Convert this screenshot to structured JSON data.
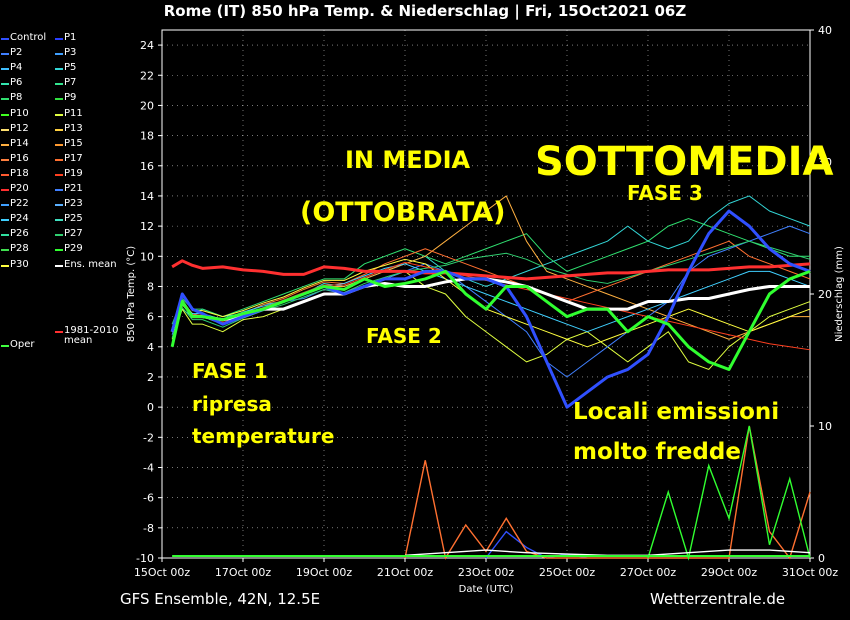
{
  "title": "Rome  (IT)  850 hPa Temp. & Niederschlag | Fri, 15Oct2021 06Z",
  "footer_left": "GFS Ensemble, 42N, 12.5E",
  "footer_right": "Wetterzentrale.de",
  "legend": [
    {
      "label": "Control",
      "color": "#3050ff"
    },
    {
      "label": "P1",
      "color": "#2a40ff"
    },
    {
      "label": "P2",
      "color": "#3f7fff"
    },
    {
      "label": "P3",
      "color": "#3f9fff"
    },
    {
      "label": "P4",
      "color": "#40bfff"
    },
    {
      "label": "P5",
      "color": "#33d6d6"
    },
    {
      "label": "P6",
      "color": "#33e6b0"
    },
    {
      "label": "P7",
      "color": "#33e690"
    },
    {
      "label": "P8",
      "color": "#30e070"
    },
    {
      "label": "P9",
      "color": "#30e040"
    },
    {
      "label": "P10",
      "color": "#40ff20"
    },
    {
      "label": "P11",
      "color": "#e0ff40"
    },
    {
      "label": "P12",
      "color": "#ffe070"
    },
    {
      "label": "P13",
      "color": "#ffd040"
    },
    {
      "label": "P14",
      "color": "#ffb040"
    },
    {
      "label": "P15",
      "color": "#ff9a30"
    },
    {
      "label": "P16",
      "color": "#ff8040"
    },
    {
      "label": "P17",
      "color": "#ff7030"
    },
    {
      "label": "P18",
      "color": "#ff5a30"
    },
    {
      "label": "P19",
      "color": "#ff4020"
    },
    {
      "label": "P20",
      "color": "#ff3030"
    },
    {
      "label": "P21",
      "color": "#4080ff"
    },
    {
      "label": "P22",
      "color": "#3fa0ff"
    },
    {
      "label": "P23",
      "color": "#5ab0ff"
    },
    {
      "label": "P24",
      "color": "#40d0ff"
    },
    {
      "label": "P25",
      "color": "#40e0c0"
    },
    {
      "label": "P26",
      "color": "#30e0a0"
    },
    {
      "label": "P27",
      "color": "#30d070"
    },
    {
      "label": "P28",
      "color": "#40e050"
    },
    {
      "label": "P29",
      "color": "#30ff30"
    },
    {
      "label": "P30",
      "color": "#ffff40"
    },
    {
      "label": "Ens. mean",
      "color": "#ffffff"
    },
    {
      "label": "Oper",
      "color": "#40ff40"
    },
    {
      "label": "1981-2010\nmean",
      "color": "#ff3030"
    }
  ],
  "annotations": {
    "in_media": "IN MEDIA",
    "ottobrata": "(OTTOBRATA)",
    "sottomedia": "SOTTOMEDIA",
    "fase3": "FASE 3",
    "fase2": "FASE 2",
    "fase1": "FASE 1",
    "ripresa": "ripresa",
    "temperature": "temperature",
    "locali": "Locali emissioni",
    "molto": "molto fredde"
  },
  "chart_data": {
    "type": "line",
    "title": "Rome  (IT)  850 hPa Temp. & Niederschlag | Fri, 15Oct2021 06Z",
    "xlabel": "Date (UTC)",
    "ylabel": "850 hPa Temp. (°C)",
    "y2label": "Niederschlag (mm)",
    "xlim": [
      0,
      16
    ],
    "ylim": [
      -10,
      25
    ],
    "y2lim": [
      0,
      40
    ],
    "x_ticks": [
      0,
      2,
      4,
      6,
      8,
      10,
      12,
      14,
      16
    ],
    "x_tick_labels": [
      "15Oct 00z",
      "17Oct 00z",
      "19Oct 00z",
      "21Oct 00z",
      "23Oct 00z",
      "25Oct 00z",
      "27Oct 00z",
      "29Oct 00z",
      "31Oct 00z"
    ],
    "y_ticks": [
      -10,
      -8,
      -6,
      -4,
      -2,
      0,
      2,
      4,
      6,
      8,
      10,
      12,
      14,
      16,
      18,
      20,
      22,
      24
    ],
    "y2_ticks": [
      0,
      10,
      20,
      30,
      40
    ],
    "x": [
      0.25,
      0.5,
      0.75,
      1,
      1.5,
      2,
      2.5,
      3,
      3.5,
      4,
      4.5,
      5,
      5.5,
      6,
      6.5,
      7,
      7.5,
      8,
      8.5,
      9,
      9.5,
      10,
      10.5,
      11,
      11.5,
      12,
      12.5,
      13,
      13.5,
      14,
      14.5,
      15,
      15.5,
      16
    ],
    "series": [
      {
        "name": "Ens. mean",
        "color": "#ffffff",
        "width": 3,
        "values": [
          5,
          7,
          6,
          6,
          5.8,
          6,
          6.5,
          6.5,
          7,
          7.5,
          7.5,
          8,
          8.2,
          8,
          8,
          8.3,
          8.5,
          8.5,
          8.3,
          8,
          7.5,
          7,
          6.5,
          6.5,
          6.5,
          7,
          7,
          7.2,
          7.2,
          7.5,
          7.8,
          8,
          8,
          8
        ]
      },
      {
        "name": "1981-2010\nmean",
        "color": "#ff3030",
        "width": 3,
        "values": [
          9.3,
          9.7,
          9.4,
          9.2,
          9.3,
          9.1,
          9.0,
          8.8,
          8.8,
          9.3,
          9.2,
          9.0,
          9.0,
          9.0,
          8.9,
          8.9,
          8.8,
          8.7,
          8.6,
          8.5,
          8.6,
          8.7,
          8.8,
          8.9,
          8.9,
          9.0,
          9.1,
          9.1,
          9.1,
          9.2,
          9.3,
          9.3,
          9.4,
          9.5
        ]
      },
      {
        "name": "Control",
        "color": "#3050ff",
        "width": 3,
        "values": [
          5,
          7.5,
          6.5,
          6.2,
          5.5,
          6,
          6.5,
          7,
          7.5,
          8,
          7.5,
          8,
          8.5,
          8.5,
          9,
          9,
          8.5,
          8.5,
          8,
          6,
          3,
          0,
          1,
          2,
          2.5,
          3.5,
          6,
          9,
          11.5,
          13,
          12,
          10.5,
          9.5,
          9
        ]
      },
      {
        "name": "Oper",
        "color": "#30ff30",
        "width": 3,
        "values": [
          4,
          7,
          6,
          6,
          5.8,
          6.2,
          6.5,
          7,
          7.5,
          8,
          7.8,
          8.5,
          8,
          8.2,
          8.5,
          9,
          7.5,
          6.5,
          8,
          8,
          7,
          6,
          6.5,
          6.5,
          5,
          6,
          5.5,
          4,
          3,
          2.5,
          5,
          7.5,
          8.5,
          9
        ]
      },
      {
        "name": "P5",
        "color": "#33d6d6",
        "width": 1,
        "values": [
          5,
          6.5,
          6,
          6.5,
          6,
          6.2,
          6.8,
          7,
          7.5,
          8.2,
          8,
          8.5,
          9,
          9.5,
          10,
          9,
          8.5,
          8,
          8.5,
          9,
          9.5,
          10,
          10.5,
          11,
          12,
          11,
          10.5,
          11,
          12.5,
          13.5,
          14,
          13,
          12.5,
          12
        ]
      },
      {
        "name": "P8",
        "color": "#30e070",
        "width": 1,
        "values": [
          5.5,
          7.2,
          6.5,
          6.5,
          6,
          6.5,
          7,
          7.5,
          8,
          8.5,
          8.5,
          9.5,
          10,
          10.5,
          10,
          9.5,
          10,
          10.5,
          11,
          11.5,
          10,
          9,
          9.5,
          10,
          10.5,
          11,
          12,
          12.5,
          12,
          11.5,
          11,
          10.5,
          10,
          10
        ]
      },
      {
        "name": "P11",
        "color": "#e0ff40",
        "width": 1,
        "values": [
          4.5,
          6.5,
          5.5,
          5.5,
          5,
          5.8,
          6,
          6.5,
          7,
          7.5,
          7.5,
          8,
          8.5,
          9,
          8,
          7.5,
          6,
          5,
          4,
          3,
          3.5,
          4.5,
          5,
          4,
          3,
          4,
          5,
          3,
          2.5,
          4,
          5,
          6,
          6.5,
          7
        ]
      },
      {
        "name": "P14",
        "color": "#ffb040",
        "width": 1,
        "values": [
          5,
          6.8,
          6,
          6,
          5.5,
          6,
          6.5,
          7,
          7.5,
          8,
          8,
          8.5,
          9,
          9.5,
          10,
          11,
          12,
          13,
          14,
          11,
          9,
          8.5,
          8,
          7.5,
          7,
          6.5,
          6,
          5.5,
          5,
          4.5,
          5,
          5.5,
          6,
          6
        ]
      },
      {
        "name": "P17",
        "color": "#ff7030",
        "width": 1,
        "values": [
          5,
          7,
          6.2,
          6,
          5.7,
          6.2,
          6.8,
          7.2,
          7.8,
          8.3,
          8.2,
          8.8,
          9.5,
          10,
          10.5,
          10,
          9.5,
          9,
          8.5,
          8,
          7.5,
          7,
          7.5,
          8,
          8.5,
          9,
          9.5,
          10,
          10.5,
          11,
          10,
          9.5,
          9,
          8.5
        ]
      },
      {
        "name": "P21",
        "color": "#4080ff",
        "width": 1,
        "values": [
          4.8,
          7,
          6,
          6,
          5.5,
          6,
          6.5,
          7,
          7.2,
          7.8,
          7.5,
          8,
          8.5,
          9,
          9.5,
          9,
          8,
          7,
          6,
          5,
          3,
          2,
          3,
          4,
          5,
          6,
          7,
          9,
          10,
          10.5,
          11,
          11.5,
          12,
          11.5
        ]
      },
      {
        "name": "P24",
        "color": "#40d0ff",
        "width": 1,
        "values": [
          5.2,
          6.8,
          6.2,
          6.2,
          5.8,
          6.3,
          6.7,
          7,
          7.5,
          8,
          8.2,
          8.7,
          9.2,
          9.5,
          9,
          8.5,
          8,
          7.5,
          7,
          6.5,
          6,
          5.5,
          5,
          5.5,
          6,
          6.5,
          7,
          7.5,
          8,
          8.5,
          9,
          9,
          8.5,
          8
        ]
      },
      {
        "name": "P27",
        "color": "#30d070",
        "width": 1,
        "values": [
          4.6,
          6.6,
          5.8,
          5.8,
          5.3,
          5.9,
          6.4,
          6.8,
          7.3,
          7.8,
          7.6,
          8.2,
          8.6,
          9,
          9.2,
          9.4,
          9.8,
          10,
          10.2,
          9.8,
          9.2,
          8.8,
          8.4,
          8.2,
          8.6,
          9,
          9.4,
          9.8,
          10.2,
          10.6,
          11,
          10.6,
          10.2,
          9.8
        ]
      },
      {
        "name": "P30",
        "color": "#ffff40",
        "width": 1,
        "values": [
          5,
          7.4,
          6.4,
          6.4,
          6,
          6.4,
          6.9,
          7.3,
          7.9,
          8.4,
          8.4,
          9,
          9.4,
          9.8,
          9.5,
          8.5,
          7.5,
          6.5,
          6,
          5.5,
          5,
          4.5,
          4,
          4.5,
          5,
          5.5,
          6,
          6.5,
          6,
          5.5,
          5,
          5.5,
          6,
          6.5
        ]
      },
      {
        "name": "P19",
        "color": "#ff4020",
        "width": 1,
        "values": [
          5,
          6.9,
          6.1,
          6.1,
          5.6,
          6.1,
          6.6,
          7.1,
          7.6,
          8.1,
          8.1,
          8.6,
          9.1,
          9.6,
          9.3,
          9,
          8.7,
          8.4,
          8.1,
          7.8,
          7.5,
          7.2,
          6.9,
          6.6,
          6.3,
          6,
          5.7,
          5.4,
          5.1,
          4.8,
          4.5,
          4.2,
          4,
          3.8
        ]
      }
    ],
    "precip_series": [
      {
        "name": "Control",
        "color": "#3050ff",
        "x": [
          8,
          8.5,
          9,
          9.5,
          10,
          10.5
        ],
        "values": [
          0,
          2,
          0.8,
          0,
          0.3,
          0
        ]
      },
      {
        "name": "P17",
        "color": "#ff7030",
        "x": [
          6,
          6.5,
          7,
          7.5,
          8,
          8.5,
          9,
          9.5,
          14,
          14.5,
          15,
          15.5,
          16
        ],
        "values": [
          0,
          7.4,
          0,
          2.5,
          0.5,
          3,
          0.5,
          0,
          0,
          10,
          2,
          0,
          5
        ]
      },
      {
        "name": "P29",
        "color": "#30ff30",
        "x": [
          12,
          12.5,
          13,
          13.5,
          14,
          14.5,
          15,
          15.5,
          16
        ],
        "values": [
          0,
          5,
          0,
          7,
          3,
          10,
          1,
          6,
          0
        ]
      },
      {
        "name": "Ens. mean",
        "color": "#ffffff",
        "x": [
          6,
          7,
          8,
          9,
          10,
          11,
          12,
          13,
          14,
          15,
          16
        ],
        "values": [
          0.2,
          0.4,
          0.6,
          0.4,
          0.3,
          0.2,
          0.2,
          0.4,
          0.6,
          0.6,
          0.4
        ]
      }
    ]
  }
}
